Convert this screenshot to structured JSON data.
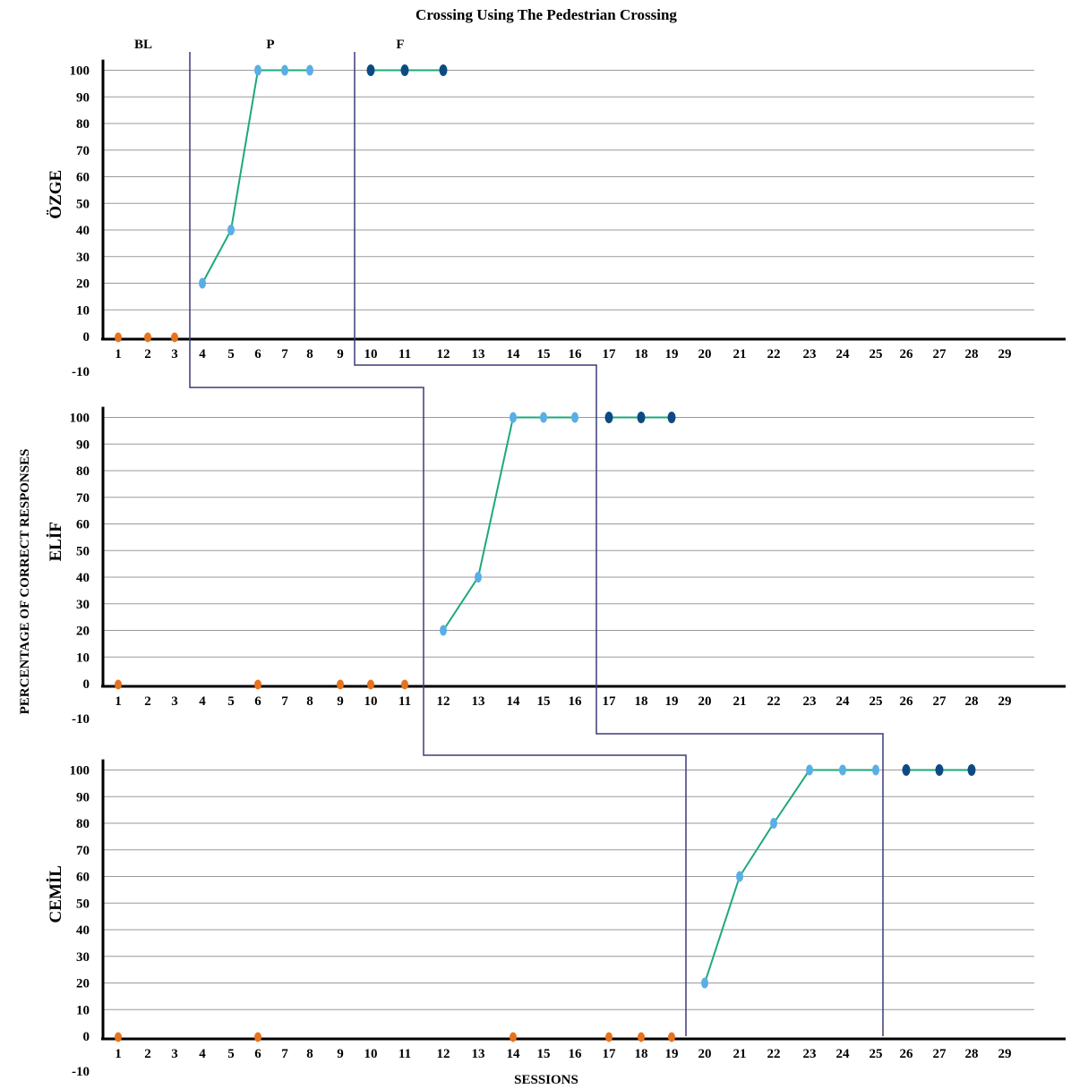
{
  "chart_data": {
    "type": "line",
    "title": "Crossing Using The Pedestrian Crossing",
    "xlabel": "SESSIONS",
    "ylabel": "PERCENTAGE OF CORRECT RESPONSES",
    "phase_labels": [
      "BL",
      "P",
      "F"
    ],
    "xlim": [
      1,
      29
    ],
    "ylim": [
      -10,
      100
    ],
    "y_ticks": [
      100,
      90,
      80,
      70,
      60,
      50,
      40,
      30,
      20,
      10,
      0,
      -10
    ],
    "x_ticks": [
      1,
      2,
      3,
      4,
      5,
      6,
      7,
      8,
      9,
      10,
      11,
      12,
      13,
      14,
      15,
      16,
      17,
      18,
      19,
      20,
      21,
      22,
      23,
      24,
      25,
      26,
      27,
      28,
      29
    ],
    "grid": true,
    "colors": {
      "baseline": "#e8731e",
      "intervention_line": "#1ea87a",
      "intervention_marker": "#5aaee6",
      "followup_marker": "#0d4a82",
      "phase_line": "#3b3b7a"
    },
    "panels": [
      {
        "participant": "ÖZGE",
        "baseline": {
          "x": [
            1,
            2,
            3
          ],
          "y": [
            0,
            0,
            0
          ]
        },
        "intervention": {
          "x": [
            4,
            5,
            6,
            7,
            8
          ],
          "y": [
            20,
            40,
            100,
            100,
            100
          ]
        },
        "follow_up": {
          "x": [
            10,
            11,
            12
          ],
          "y": [
            100,
            100,
            100
          ]
        }
      },
      {
        "participant": "ELİF",
        "baseline": {
          "x": [
            1,
            6,
            9,
            10,
            11
          ],
          "y": [
            0,
            0,
            0,
            0,
            0
          ]
        },
        "intervention": {
          "x": [
            12,
            13,
            14,
            15,
            16
          ],
          "y": [
            20,
            40,
            100,
            100,
            100
          ]
        },
        "follow_up": {
          "x": [
            17,
            18,
            19
          ],
          "y": [
            100,
            100,
            100
          ]
        }
      },
      {
        "participant": "CEMİL",
        "baseline": {
          "x": [
            1,
            6,
            14,
            17,
            18,
            19
          ],
          "y": [
            0,
            0,
            0,
            0,
            0,
            0
          ]
        },
        "intervention": {
          "x": [
            20,
            21,
            22,
            23,
            24,
            25
          ],
          "y": [
            20,
            60,
            80,
            100,
            100,
            100
          ]
        },
        "follow_up": {
          "x": [
            26,
            27,
            28
          ],
          "y": [
            100,
            100,
            100
          ]
        }
      }
    ]
  }
}
